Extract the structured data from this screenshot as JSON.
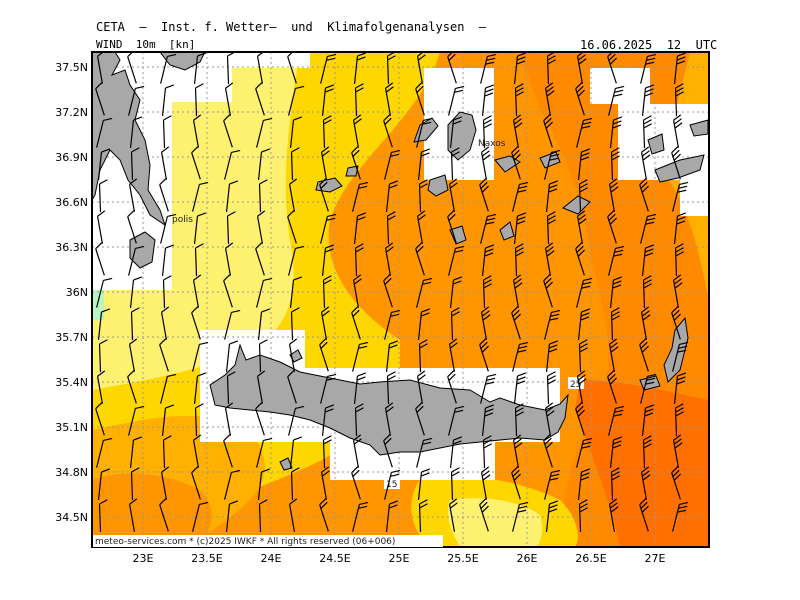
{
  "header": {
    "source": "CETA  —  Inst. f. Wetter—  und  Klimafolgenanalysen  —",
    "field": "WIND  10m  [kn]",
    "datetime": "16.06.2025  12  UTC",
    "footer": "meteo-services.com  *  (c)2025  IWKF  *  All  rights  reserved  (06+006)"
  },
  "axes": {
    "lat_labels": [
      "37.5N",
      "37.2N",
      "36.9N",
      "36.6N",
      "36.3N",
      "36N",
      "35.7N",
      "35.4N",
      "35.1N",
      "34.8N",
      "34.5N"
    ],
    "lon_labels": [
      "23E",
      "23.5E",
      "24E",
      "24.5E",
      "25E",
      "25.5E",
      "26E",
      "26.5E",
      "27E"
    ]
  },
  "places": {
    "naxos": "Naxos",
    "monemvasia_partial": "polis"
  },
  "contour_labels": {
    "c25": "25",
    "c15": "15"
  },
  "colors": {
    "land": "#a8a8a8",
    "sea_light_yellow": "#fff170",
    "yellow": "#ffd700",
    "orange_light": "#ffb000",
    "orange": "#ff9500",
    "orange_dark": "#ff7000",
    "green": "#b8f5c0",
    "grid": "#999999"
  }
}
